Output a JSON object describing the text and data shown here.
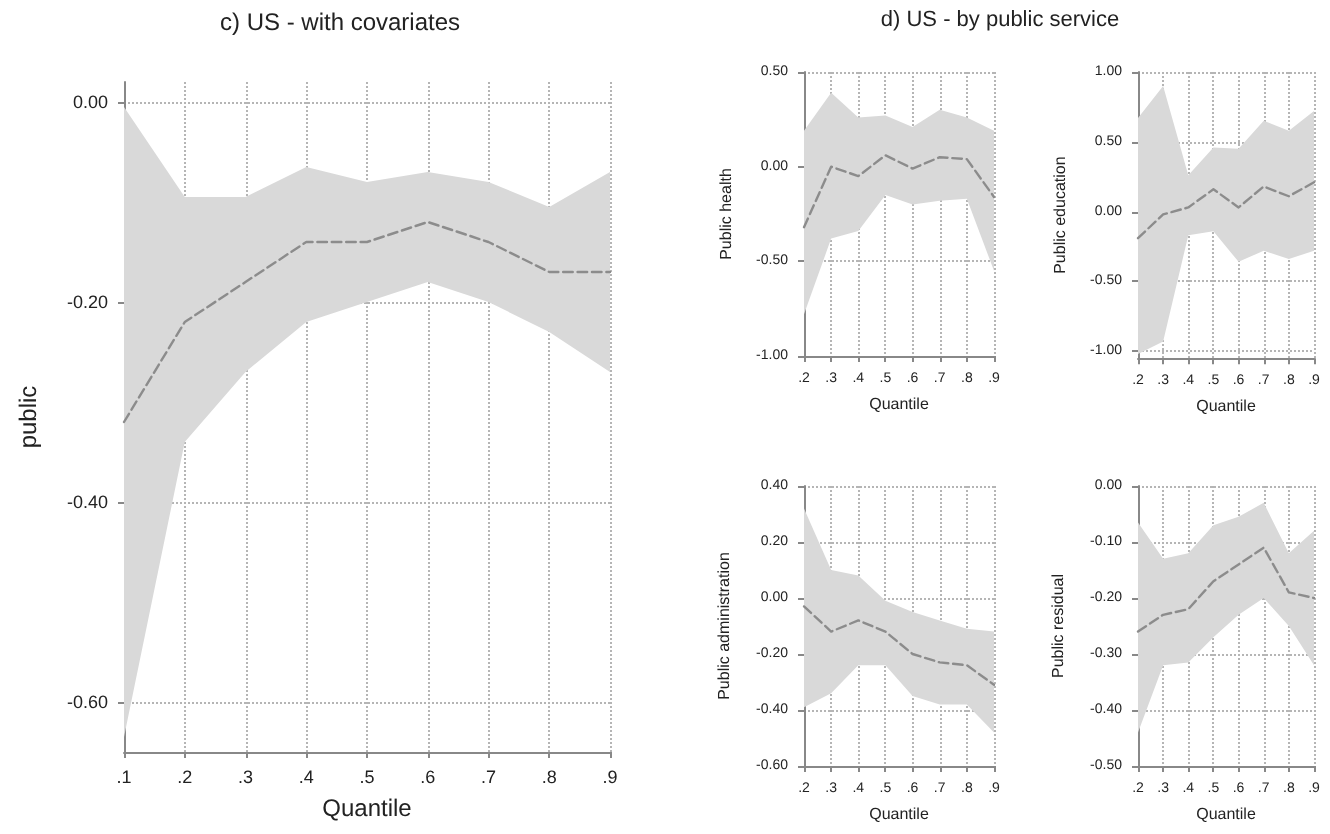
{
  "chart_data": [
    {
      "type": "line",
      "title": "c) US - with covariates",
      "xlabel": "Quantile",
      "ylabel": "public",
      "x": [
        0.1,
        0.2,
        0.3,
        0.4,
        0.5,
        0.6,
        0.7,
        0.8,
        0.9
      ],
      "series": [
        {
          "color": "#8c8c8c",
          "values": [
            -0.32,
            -0.22,
            -0.18,
            -0.14,
            -0.14,
            -0.12,
            -0.14,
            -0.17,
            -0.17
          ],
          "lower": [
            -0.635,
            -0.34,
            -0.27,
            -0.22,
            -0.2,
            -0.18,
            -0.2,
            -0.23,
            -0.27
          ],
          "upper": [
            -0.005,
            -0.095,
            -0.095,
            -0.065,
            -0.08,
            -0.07,
            -0.08,
            -0.105,
            -0.07
          ]
        }
      ],
      "xlim": [
        0.1,
        0.9
      ],
      "ylim": [
        -0.65,
        0.02
      ],
      "xticks": [
        {
          "value": 0.1,
          "label": ".1"
        },
        {
          "value": 0.2,
          "label": ".2"
        },
        {
          "value": 0.3,
          "label": ".3"
        },
        {
          "value": 0.4,
          "label": ".4"
        },
        {
          "value": 0.5,
          "label": ".5"
        },
        {
          "value": 0.6,
          "label": ".6"
        },
        {
          "value": 0.7,
          "label": ".7"
        },
        {
          "value": 0.8,
          "label": ".8"
        },
        {
          "value": 0.9,
          "label": ".9"
        }
      ],
      "yticks": [
        {
          "value": 0,
          "label": "0.00"
        },
        {
          "value": -0.2,
          "label": "-0.20"
        },
        {
          "value": -0.4,
          "label": "-0.40"
        },
        {
          "value": -0.6,
          "label": "-0.60"
        }
      ],
      "grid": true,
      "line_style": "dashed",
      "marker": "none"
    },
    {
      "type": "line",
      "title": "d) US - by public service",
      "xlabel": "Quantile",
      "ylabel": "Public health",
      "x": [
        0.2,
        0.3,
        0.4,
        0.5,
        0.6,
        0.7,
        0.8,
        0.9
      ],
      "series": [
        {
          "color": "#8c8c8c",
          "values": [
            -0.32,
            0,
            -0.05,
            0.06,
            -0.01,
            0.05,
            0.04,
            -0.16
          ],
          "lower": [
            -0.78,
            -0.38,
            -0.34,
            -0.15,
            -0.2,
            -0.18,
            -0.17,
            -0.55
          ],
          "upper": [
            0.19,
            0.39,
            0.26,
            0.27,
            0.21,
            0.3,
            0.26,
            0.19
          ]
        }
      ],
      "xlim": [
        0.2,
        0.9
      ],
      "ylim": [
        -1,
        0.5
      ],
      "xticks": [
        {
          "value": 0.2,
          "label": ".2"
        },
        {
          "value": 0.3,
          "label": ".3"
        },
        {
          "value": 0.4,
          "label": ".4"
        },
        {
          "value": 0.5,
          "label": ".5"
        },
        {
          "value": 0.6,
          "label": ".6"
        },
        {
          "value": 0.7,
          "label": ".7"
        },
        {
          "value": 0.8,
          "label": ".8"
        },
        {
          "value": 0.9,
          "label": ".9"
        }
      ],
      "yticks": [
        {
          "value": 0.5,
          "label": "0.50"
        },
        {
          "value": 0,
          "label": "0.00"
        },
        {
          "value": -0.5,
          "label": "-0.50"
        },
        {
          "value": -1,
          "label": "-1.00"
        }
      ],
      "grid": true,
      "line_style": "dashed",
      "marker": "none"
    },
    {
      "type": "line",
      "xlabel": "Quantile",
      "ylabel": "Public education",
      "x": [
        0.2,
        0.3,
        0.4,
        0.5,
        0.6,
        0.7,
        0.8,
        0.9
      ],
      "series": [
        {
          "color": "#8c8c8c",
          "values": [
            -0.19,
            -0.02,
            0.03,
            0.16,
            0.03,
            0.18,
            0.11,
            0.21
          ],
          "lower": [
            -1.02,
            -0.93,
            -0.17,
            -0.14,
            -0.36,
            -0.28,
            -0.34,
            -0.28
          ],
          "upper": [
            0.67,
            0.9,
            0.26,
            0.46,
            0.45,
            0.65,
            0.58,
            0.72
          ]
        }
      ],
      "xlim": [
        0.2,
        0.9
      ],
      "ylim": [
        -1.05,
        1
      ],
      "xticks": [
        {
          "value": 0.2,
          "label": ".2"
        },
        {
          "value": 0.3,
          "label": ".3"
        },
        {
          "value": 0.4,
          "label": ".4"
        },
        {
          "value": 0.5,
          "label": ".5"
        },
        {
          "value": 0.6,
          "label": ".6"
        },
        {
          "value": 0.7,
          "label": ".7"
        },
        {
          "value": 0.8,
          "label": ".8"
        },
        {
          "value": 0.9,
          "label": ".9"
        }
      ],
      "yticks": [
        {
          "value": 1,
          "label": "1.00"
        },
        {
          "value": 0.5,
          "label": "0.50"
        },
        {
          "value": 0,
          "label": "0.00"
        },
        {
          "value": -0.5,
          "label": "-0.50"
        },
        {
          "value": -1,
          "label": "-1.00"
        }
      ],
      "grid": true,
      "line_style": "dashed",
      "marker": "none"
    },
    {
      "type": "line",
      "xlabel": "Quantile",
      "ylabel": "Public administration",
      "x": [
        0.2,
        0.3,
        0.4,
        0.5,
        0.6,
        0.7,
        0.8,
        0.9
      ],
      "series": [
        {
          "color": "#8c8c8c",
          "values": [
            -0.03,
            -0.12,
            -0.08,
            -0.12,
            -0.2,
            -0.23,
            -0.24,
            -0.31
          ],
          "lower": [
            -0.39,
            -0.34,
            -0.24,
            -0.24,
            -0.35,
            -0.38,
            -0.38,
            -0.48
          ],
          "upper": [
            0.32,
            0.1,
            0.08,
            -0.01,
            -0.05,
            -0.08,
            -0.11,
            -0.12
          ]
        }
      ],
      "xlim": [
        0.2,
        0.9
      ],
      "ylim": [
        -0.6,
        0.4
      ],
      "xticks": [
        {
          "value": 0.2,
          "label": ".2"
        },
        {
          "value": 0.3,
          "label": ".3"
        },
        {
          "value": 0.4,
          "label": ".4"
        },
        {
          "value": 0.5,
          "label": ".5"
        },
        {
          "value": 0.6,
          "label": ".6"
        },
        {
          "value": 0.7,
          "label": ".7"
        },
        {
          "value": 0.8,
          "label": ".8"
        },
        {
          "value": 0.9,
          "label": ".9"
        }
      ],
      "yticks": [
        {
          "value": 0.4,
          "label": "0.40"
        },
        {
          "value": 0.2,
          "label": "0.20"
        },
        {
          "value": 0,
          "label": "0.00"
        },
        {
          "value": -0.2,
          "label": "-0.20"
        },
        {
          "value": -0.4,
          "label": "-0.40"
        },
        {
          "value": -0.6,
          "label": "-0.60"
        }
      ],
      "grid": true,
      "line_style": "dashed",
      "marker": "none"
    },
    {
      "type": "line",
      "xlabel": "Quantile",
      "ylabel": "Public residual",
      "x": [
        0.2,
        0.3,
        0.4,
        0.5,
        0.6,
        0.7,
        0.8,
        0.9
      ],
      "series": [
        {
          "color": "#8c8c8c",
          "values": [
            -0.26,
            -0.23,
            -0.22,
            -0.17,
            -0.14,
            -0.11,
            -0.19,
            -0.2
          ],
          "lower": [
            -0.44,
            -0.32,
            -0.315,
            -0.27,
            -0.23,
            -0.2,
            -0.25,
            -0.32
          ],
          "upper": [
            -0.065,
            -0.13,
            -0.12,
            -0.07,
            -0.055,
            -0.03,
            -0.12,
            -0.08
          ]
        }
      ],
      "xlim": [
        0.2,
        0.9
      ],
      "ylim": [
        -0.5,
        0
      ],
      "xticks": [
        {
          "value": 0.2,
          "label": ".2"
        },
        {
          "value": 0.3,
          "label": ".3"
        },
        {
          "value": 0.4,
          "label": ".4"
        },
        {
          "value": 0.5,
          "label": ".5"
        },
        {
          "value": 0.6,
          "label": ".6"
        },
        {
          "value": 0.7,
          "label": ".7"
        },
        {
          "value": 0.8,
          "label": ".8"
        },
        {
          "value": 0.9,
          "label": ".9"
        }
      ],
      "yticks": [
        {
          "value": 0,
          "label": "0.00"
        },
        {
          "value": -0.1,
          "label": "-0.10"
        },
        {
          "value": -0.2,
          "label": "-0.20"
        },
        {
          "value": -0.3,
          "label": "-0.30"
        },
        {
          "value": -0.4,
          "label": "-0.40"
        },
        {
          "value": -0.5,
          "label": "-0.50"
        }
      ],
      "grid": true,
      "line_style": "dashed",
      "marker": "none"
    }
  ]
}
